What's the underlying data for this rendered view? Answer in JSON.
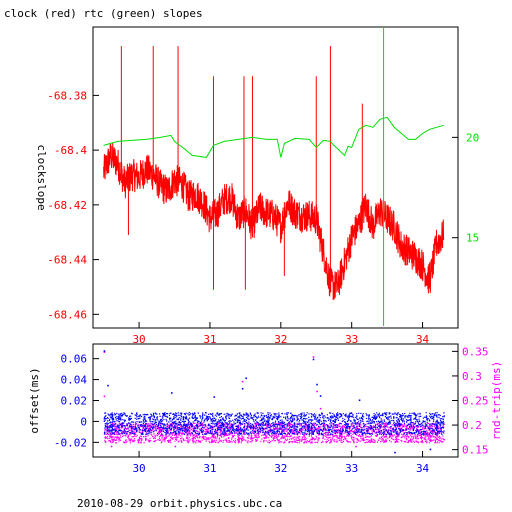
{
  "title": "clock (red) rtc (green) slopes",
  "footer": "2010-08-29  orbit.physics.ubc.ca",
  "colors": {
    "red": "#ff0000",
    "green": "#00e000",
    "blue": "#0000ff",
    "magenta": "#ff00ff",
    "axis": "#000000"
  },
  "chart_data": [
    {
      "type": "line",
      "title": "clock (red) rtc (green) slopes",
      "xlabel": "",
      "ylabel": "clockslope",
      "xlim": [
        29.35,
        34.5
      ],
      "ylim": [
        -68.465,
        -68.355
      ],
      "y2lim": [
        10.5,
        25.5
      ],
      "x_ticks": [
        "30",
        "31",
        "32",
        "33",
        "34"
      ],
      "y_ticks": [
        "-68.38",
        "-68.4",
        "-68.42",
        "-68.44",
        "-68.46"
      ],
      "y2_ticks": [
        "20",
        "15"
      ],
      "grid": false,
      "series": [
        {
          "name": "clock",
          "color": "red",
          "axis": "left",
          "x": [
            29.5,
            29.6,
            29.7,
            29.8,
            29.9,
            30.0,
            30.1,
            30.2,
            30.3,
            30.4,
            30.5,
            30.6,
            30.7,
            30.8,
            30.9,
            31.0,
            31.1,
            31.2,
            31.3,
            31.4,
            31.5,
            31.6,
            31.7,
            31.8,
            31.9,
            32.0,
            32.1,
            32.2,
            32.3,
            32.4,
            32.5,
            32.6,
            32.7,
            32.8,
            32.9,
            33.0,
            33.1,
            33.2,
            33.3,
            33.4,
            33.5,
            33.6,
            33.7,
            33.8,
            33.9,
            34.0,
            34.1,
            34.2,
            34.3
          ],
          "y": [
            -68.408,
            -68.402,
            -68.405,
            -68.412,
            -68.409,
            -68.41,
            -68.407,
            -68.409,
            -68.413,
            -68.415,
            -68.411,
            -68.412,
            -68.417,
            -68.416,
            -68.419,
            -68.425,
            -68.423,
            -68.418,
            -68.417,
            -68.425,
            -68.422,
            -68.428,
            -68.421,
            -68.423,
            -68.424,
            -68.428,
            -68.419,
            -68.423,
            -68.424,
            -68.424,
            -68.425,
            -68.437,
            -68.449,
            -68.45,
            -68.441,
            -68.432,
            -68.427,
            -68.42,
            -68.428,
            -68.422,
            -68.425,
            -68.428,
            -68.435,
            -68.437,
            -68.439,
            -68.442,
            -68.448,
            -68.434,
            -68.431
          ]
        },
        {
          "name": "rtc",
          "color": "green",
          "axis": "right",
          "x": [
            29.5,
            29.7,
            29.9,
            30.1,
            30.3,
            30.45,
            30.5,
            30.65,
            30.75,
            30.95,
            31.05,
            31.2,
            31.4,
            31.6,
            31.8,
            31.95,
            32.0,
            32.05,
            32.2,
            32.4,
            32.5,
            32.6,
            32.7,
            32.75,
            32.9,
            32.95,
            33.0,
            33.1,
            33.2,
            33.3,
            33.4,
            33.5,
            33.6,
            33.7,
            33.8,
            33.9,
            34.0,
            34.1,
            34.2,
            34.3
          ],
          "y": [
            19.6,
            19.8,
            19.85,
            19.9,
            20.0,
            20.1,
            19.8,
            19.4,
            19.1,
            19.0,
            19.6,
            19.8,
            19.9,
            20.0,
            19.9,
            19.9,
            19.0,
            19.7,
            19.95,
            19.9,
            19.5,
            19.85,
            19.8,
            19.6,
            19.1,
            19.55,
            19.5,
            20.4,
            20.6,
            20.5,
            20.9,
            21.0,
            20.5,
            20.2,
            19.9,
            19.9,
            20.2,
            20.4,
            20.5,
            20.6
          ]
        }
      ],
      "spikes": {
        "red": [
          {
            "x": 29.75,
            "to": -68.362
          },
          {
            "x": 29.85,
            "to": -68.431
          },
          {
            "x": 30.2,
            "to": -68.362
          },
          {
            "x": 30.55,
            "to": -68.362
          },
          {
            "x": 31.05,
            "to": -68.373
          },
          {
            "x": 31.05,
            "to": -68.451
          },
          {
            "x": 31.48,
            "to": -68.373
          },
          {
            "x": 31.5,
            "to": -68.451
          },
          {
            "x": 31.6,
            "to": -68.373
          },
          {
            "x": 32.05,
            "to": -68.446
          },
          {
            "x": 32.5,
            "to": -68.373
          },
          {
            "x": 32.7,
            "to": -68.362
          },
          {
            "x": 33.15,
            "to": -68.383
          },
          {
            "x": 34.1,
            "to": -68.441
          }
        ],
        "green": [
          {
            "x": 33.45,
            "from": 10.6,
            "to": 25.5
          }
        ]
      }
    },
    {
      "type": "scatter",
      "xlabel": "",
      "ylabel": "offset(ms)",
      "y2label": "rnd-trip(ms)",
      "xlim": [
        29.35,
        34.5
      ],
      "ylim": [
        -0.034,
        0.074
      ],
      "y2lim": [
        0.135,
        0.365
      ],
      "x_ticks": [
        "30",
        "31",
        "32",
        "33",
        "34"
      ],
      "y_ticks": [
        "0.06",
        "0.04",
        "0.02",
        "0",
        "-0.02"
      ],
      "y2_ticks": [
        "0.35",
        "0.3",
        "0.25",
        "0.2",
        "0.15"
      ],
      "grid": false,
      "series": [
        {
          "name": "offset",
          "color": "blue",
          "axis": "left",
          "band_low": -0.012,
          "band_high": 0.009,
          "outliers": [
            [
              29.5,
              0.068
            ],
            [
              29.55,
              0.035
            ],
            [
              30.45,
              0.028
            ],
            [
              31.05,
              0.024
            ],
            [
              31.45,
              0.032
            ],
            [
              31.5,
              0.042
            ],
            [
              32.45,
              0.06
            ],
            [
              32.5,
              0.036
            ],
            [
              32.55,
              0.025
            ],
            [
              33.1,
              0.021
            ],
            [
              33.6,
              -0.029
            ],
            [
              34.1,
              -0.026
            ]
          ]
        },
        {
          "name": "rnd-trip",
          "color": "magenta",
          "axis": "right",
          "band_low": 0.165,
          "band_high": 0.205,
          "outliers": [
            [
              29.5,
              0.35
            ],
            [
              29.5,
              0.26
            ],
            [
              29.6,
              0.158
            ],
            [
              30.5,
              0.158
            ],
            [
              31.45,
              0.29
            ],
            [
              32.45,
              0.34
            ],
            [
              32.5,
              0.27
            ],
            [
              32.55,
              0.235
            ],
            [
              33.05,
              0.158
            ]
          ]
        }
      ]
    }
  ]
}
